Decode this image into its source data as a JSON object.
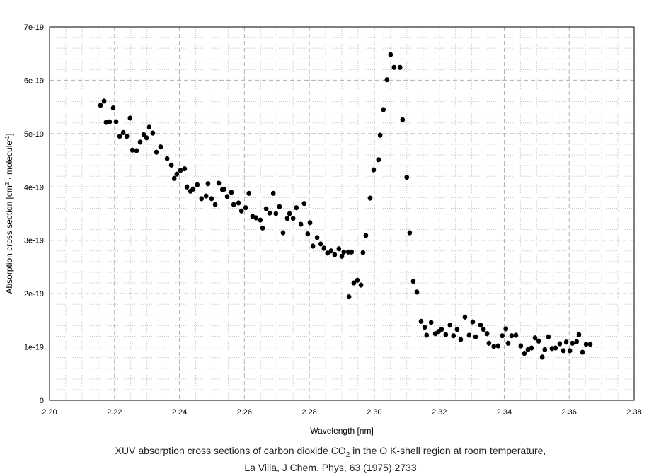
{
  "chart_data": {
    "type": "scatter",
    "title": [
      "XUV absorption cross sections of carbon dioxide CO",
      "2",
      " in the O K-shell region at room temperature,"
    ],
    "subtitle": "La Villa, J Chem. Phys, 63 (1975) 2733",
    "x_label": "Wavelength [nm]",
    "y_label": [
      "Absorption cross section [cm",
      "2",
      " · molecule",
      "-1",
      "]"
    ],
    "xlim": [
      2.2,
      2.38
    ],
    "xticks": [
      {
        "value": 2.2,
        "label": "2.20"
      },
      {
        "value": 2.22,
        "label": "2.22"
      },
      {
        "value": 2.24,
        "label": "2.24"
      },
      {
        "value": 2.26,
        "label": "2.26"
      },
      {
        "value": 2.28,
        "label": "2.28"
      },
      {
        "value": 2.3,
        "label": "2.30"
      },
      {
        "value": 2.32,
        "label": "2.32"
      },
      {
        "value": 2.34,
        "label": "2.34"
      },
      {
        "value": 2.36,
        "label": "2.36"
      },
      {
        "value": 2.38,
        "label": "2.38"
      }
    ],
    "ylim": [
      0,
      7e-19
    ],
    "yticks": [
      0,
      1e-19,
      2e-19,
      3e-19,
      4e-19,
      5e-19,
      6e-19,
      7e-19
    ],
    "grid": true,
    "color": "#000000",
    "x": [
      2.2157,
      2.2168,
      2.2174,
      2.2185,
      2.2196,
      2.2205,
      2.2216,
      2.2227,
      2.2238,
      2.2248,
      2.2255,
      2.2268,
      2.2279,
      2.229,
      2.2299,
      2.2307,
      2.2318,
      2.2329,
      2.2342,
      2.2362,
      2.2375,
      2.2384,
      2.2392,
      2.2403,
      2.2416,
      2.2423,
      2.2434,
      2.2442,
      2.2455,
      2.2468,
      2.2482,
      2.2488,
      2.2499,
      2.251,
      2.2521,
      2.2532,
      2.2538,
      2.2547,
      2.256,
      2.2567,
      2.2582,
      2.2591,
      2.2604,
      2.2614,
      2.2625,
      2.2636,
      2.2649,
      2.2656,
      2.2667,
      2.2678,
      2.2689,
      2.2697,
      2.2708,
      2.2719,
      2.2732,
      2.2739,
      2.275,
      2.276,
      2.2774,
      2.2784,
      2.2795,
      2.2802,
      2.2811,
      2.2824,
      2.2835,
      2.2845,
      2.2856,
      2.2867,
      2.2878,
      2.2891,
      2.29,
      2.2906,
      2.292,
      2.2922,
      2.293,
      2.2937,
      2.2948,
      2.2959,
      2.2965,
      2.2974,
      2.2987,
      2.2998,
      2.3013,
      2.3018,
      2.3028,
      2.3039,
      2.305,
      2.3061,
      2.3079,
      2.3087,
      2.31,
      2.3109,
      2.312,
      2.3131,
      2.3144,
      2.3155,
      2.3161,
      2.3175,
      2.3188,
      2.3198,
      2.3207,
      2.322,
      2.3233,
      2.3244,
      2.3255,
      2.3266,
      2.3279,
      2.3292,
      2.3303,
      2.3312,
      2.3327,
      2.3336,
      2.3347,
      2.3353,
      2.3368,
      2.3381,
      2.3394,
      2.3405,
      2.3412,
      2.3423,
      2.3436,
      2.3451,
      2.3462,
      2.3473,
      2.3484,
      2.3495,
      2.3506,
      2.3517,
      2.3525,
      2.3536,
      2.3547,
      2.3558,
      2.3571,
      2.3582,
      2.3591,
      2.3602,
      2.361,
      2.3623,
      2.363,
      2.3641,
      2.3652,
      2.3665
    ],
    "values": [
      5.53e-19,
      5.61e-19,
      5.21e-19,
      5.22e-19,
      5.48e-19,
      5.22e-19,
      4.95e-19,
      5.02e-19,
      4.95e-19,
      5.29e-19,
      4.69e-19,
      4.68e-19,
      4.84e-19,
      4.98e-19,
      4.92e-19,
      5.12e-19,
      5.01e-19,
      4.65e-19,
      4.75e-19,
      4.53e-19,
      4.41e-19,
      4.16e-19,
      4.24e-19,
      4.31e-19,
      4.34e-19,
      4e-19,
      3.92e-19,
      3.96e-19,
      4.04e-19,
      3.78e-19,
      3.83e-19,
      4.06e-19,
      3.78e-19,
      3.67e-19,
      4.07e-19,
      3.95e-19,
      3.96e-19,
      3.82e-19,
      3.9e-19,
      3.67e-19,
      3.7e-19,
      3.55e-19,
      3.61e-19,
      3.88e-19,
      3.45e-19,
      3.42e-19,
      3.38e-19,
      3.23e-19,
      3.59e-19,
      3.51e-19,
      3.88e-19,
      3.5e-19,
      3.63e-19,
      3.14e-19,
      3.41e-19,
      3.5e-19,
      3.41e-19,
      3.61e-19,
      3.3e-19,
      3.69e-19,
      3.12e-19,
      3.33e-19,
      2.89e-19,
      3.05e-19,
      2.93e-19,
      2.85e-19,
      2.76e-19,
      2.8e-19,
      2.73e-19,
      2.84e-19,
      2.7e-19,
      2.78e-19,
      2.78e-19,
      1.94e-19,
      2.78e-19,
      2.2e-19,
      2.25e-19,
      2.16e-19,
      2.77e-19,
      3.09e-19,
      3.79e-19,
      4.32e-19,
      4.51e-19,
      4.97e-19,
      5.45e-19,
      6.01e-19,
      6.48e-19,
      6.24e-19,
      6.24e-19,
      5.26e-19,
      4.18e-19,
      3.14e-19,
      2.23e-19,
      2.03e-19,
      1.48e-19,
      1.37e-19,
      1.22e-19,
      1.46e-19,
      1.25e-19,
      1.29e-19,
      1.33e-19,
      1.23e-19,
      1.41e-19,
      1.21e-19,
      1.33e-19,
      1.14e-19,
      1.56e-19,
      1.22e-19,
      1.47e-19,
      1.19e-19,
      1.41e-19,
      1.33e-19,
      1.25e-19,
      1.07e-19,
      1.01e-19,
      1.02e-19,
      1.21e-19,
      1.34e-19,
      1.07e-19,
      1.21e-19,
      1.22e-19,
      1.02e-19,
      8.8e-20,
      9.5e-20,
      9.8e-20,
      1.17e-19,
      1.11e-19,
      8.1e-20,
      9.5e-20,
      1.19e-19,
      9.7e-20,
      9.8e-20,
      1.06e-19,
      9.3e-20,
      1.09e-19,
      9.3e-20,
      1.07e-19,
      1.1e-19,
      1.23e-19,
      9e-20,
      1.05e-19,
      1.05e-19
    ]
  }
}
